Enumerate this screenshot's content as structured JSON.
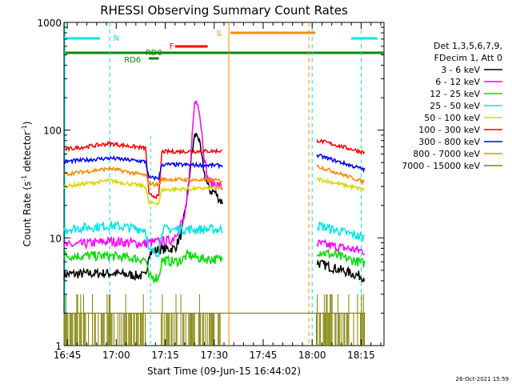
{
  "chart_data": {
    "type": "line",
    "title": "RHESSI Observing Summary Count Rates",
    "xlabel": "Start Time (09-Jun-15 16:44:02)",
    "ylabel_main": "Count Rate (s",
    "ylabel_sup1": "-1",
    "ylabel_mid": " detector",
    "ylabel_sup2": "-1",
    "ylabel_end": ")",
    "xlim_min": [
      0,
      98
    ],
    "x_ticks_min": [
      1,
      16,
      31,
      46,
      61,
      76,
      91
    ],
    "x_tick_labels": [
      "16:45",
      "17:00",
      "17:15",
      "17:30",
      "17:45",
      "18:00",
      "18:15"
    ],
    "yscale": "log",
    "ylim": [
      1,
      1000
    ],
    "y_ticks": [
      1,
      10,
      100,
      1000
    ],
    "y_tick_labels": [
      "1",
      "10",
      "100",
      "1000"
    ],
    "legend_header": [
      "Det 1,3,5,6,7,9,",
      "FDecim 1, Att 0"
    ],
    "series": [
      {
        "name": "3 - 6 keV",
        "color": "#000000",
        "points": [
          [
            0,
            4.6
          ],
          [
            14,
            4.7
          ],
          [
            25,
            4.4
          ],
          [
            26,
            7.2
          ],
          [
            29,
            7.8
          ],
          [
            34,
            8.0
          ],
          [
            36,
            11
          ],
          [
            37,
            17
          ],
          [
            38,
            28
          ],
          [
            39,
            55
          ],
          [
            40,
            88
          ],
          [
            41,
            92
          ],
          [
            42,
            60
          ],
          [
            43,
            40
          ],
          [
            44,
            30
          ],
          [
            45,
            27
          ],
          [
            46,
            27
          ],
          [
            48,
            22
          ],
          [
            78,
            5.8
          ],
          [
            92,
            4.3
          ]
        ]
      },
      {
        "name": "6 - 12 keV",
        "color": "#ff00ff",
        "points": [
          [
            0,
            8.4
          ],
          [
            14,
            9.3
          ],
          [
            25,
            8.8
          ],
          [
            26,
            9.0
          ],
          [
            33,
            9.5
          ],
          [
            35,
            12
          ],
          [
            37,
            16
          ],
          [
            38,
            25
          ],
          [
            39,
            70
          ],
          [
            40,
            180
          ],
          [
            41,
            190
          ],
          [
            42,
            110
          ],
          [
            43,
            55
          ],
          [
            44,
            35
          ],
          [
            45,
            32
          ],
          [
            46,
            32
          ],
          [
            48,
            30
          ],
          [
            78,
            8.8
          ],
          [
            92,
            7.5
          ]
        ]
      },
      {
        "name": "12 - 25 keV",
        "color": "#00dd00",
        "points": [
          [
            0,
            6.8
          ],
          [
            14,
            6.8
          ],
          [
            25,
            6.3
          ],
          [
            26,
            4.3
          ],
          [
            29,
            4.3
          ],
          [
            30,
            6.2
          ],
          [
            34,
            6.0
          ],
          [
            36,
            6.2
          ],
          [
            38,
            7.0
          ],
          [
            41,
            6.5
          ],
          [
            42,
            6.4
          ],
          [
            48,
            6.3
          ],
          [
            78,
            7.5
          ],
          [
            92,
            5.8
          ]
        ]
      },
      {
        "name": "25 - 50 keV",
        "color": "#00e5e5",
        "points": [
          [
            0,
            12
          ],
          [
            14,
            13
          ],
          [
            25,
            12
          ],
          [
            26,
            7.4
          ],
          [
            29,
            7.4
          ],
          [
            30,
            12
          ],
          [
            48,
            12
          ],
          [
            78,
            13
          ],
          [
            92,
            10
          ]
        ]
      },
      {
        "name": "50 - 100 keV",
        "color": "#d7d700",
        "points": [
          [
            0,
            30
          ],
          [
            14,
            34
          ],
          [
            25,
            30
          ],
          [
            26,
            21
          ],
          [
            29,
            21
          ],
          [
            30,
            28
          ],
          [
            48,
            29
          ],
          [
            78,
            35
          ],
          [
            92,
            28
          ]
        ]
      },
      {
        "name": "100 - 300 keV",
        "color": "#ff0000",
        "points": [
          [
            0,
            66
          ],
          [
            14,
            75
          ],
          [
            25,
            68
          ],
          [
            26,
            25
          ],
          [
            29,
            24
          ],
          [
            30,
            63
          ],
          [
            48,
            64
          ],
          [
            78,
            80
          ],
          [
            92,
            62
          ]
        ]
      },
      {
        "name": "300 - 800 keV",
        "color": "#0000ff",
        "points": [
          [
            0,
            51
          ],
          [
            14,
            55
          ],
          [
            25,
            51
          ],
          [
            26,
            36
          ],
          [
            29,
            36
          ],
          [
            30,
            48
          ],
          [
            48,
            47
          ],
          [
            78,
            58
          ],
          [
            92,
            43
          ]
        ]
      },
      {
        "name": "800 - 7000 keV",
        "color": "#ff8800",
        "points": [
          [
            0,
            39
          ],
          [
            14,
            44
          ],
          [
            25,
            38
          ],
          [
            26,
            32
          ],
          [
            29,
            31
          ],
          [
            30,
            35
          ],
          [
            48,
            34
          ],
          [
            78,
            46
          ],
          [
            92,
            33
          ]
        ]
      },
      {
        "name": "7000 - 15000 keV",
        "color": "#808000",
        "points": []
      }
    ],
    "flag_bars": [
      {
        "label": "N",
        "color": "#00e5e5"
      },
      {
        "label": "RD6",
        "color": "#008800"
      },
      {
        "label": "RD0",
        "color": "#008800"
      },
      {
        "label": "F",
        "color": "#ff0000"
      },
      {
        "label": "S",
        "color": "#ff8800"
      }
    ]
  },
  "footer": {
    "timestamp": "26-Oct-2021 15:59"
  },
  "colors": {
    "frame": "#000000",
    "background": "#ffffff"
  }
}
